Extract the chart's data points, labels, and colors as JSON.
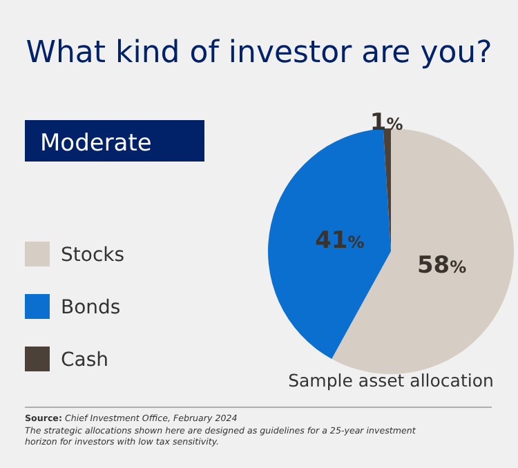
{
  "chart_data": {
    "type": "pie",
    "title": "What kind of investor are you?",
    "subtitle": "Moderate",
    "categories": [
      "Stocks",
      "Bonds",
      "Cash"
    ],
    "values": [
      58,
      41,
      1
    ],
    "colors": [
      "#d6cdc4",
      "#0a6fcf",
      "#4b4139"
    ],
    "value_labels": [
      "58%",
      "41%",
      "1%"
    ],
    "legend": "left",
    "annotations": [
      "Sample asset allocation",
      "Source: Chief Investment Office, February 2024",
      "The strategic allocations shown here are designed as guidelines for a 25-year investment horizon for investors with low tax sensitivity."
    ]
  }
}
